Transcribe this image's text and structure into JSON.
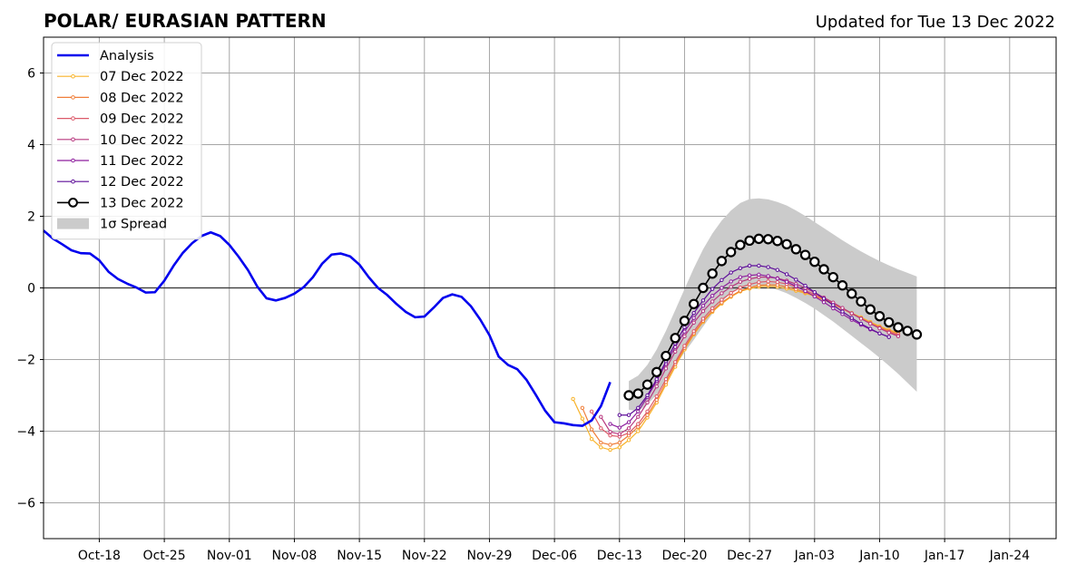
{
  "chart_data": {
    "type": "line",
    "title": "POLAR/ EURASIAN  PATTERN",
    "subtitle": "Updated for Tue 13 Dec 2022",
    "xlabel": "",
    "ylabel": "",
    "ylim": [
      -7,
      7
    ],
    "xlim": [
      "2022-10-12",
      "2023-01-29"
    ],
    "grid": true,
    "legend_position": "top-left",
    "zero_line": true,
    "x_ticks": [
      "2022-10-18",
      "2022-10-25",
      "2022-11-01",
      "2022-11-08",
      "2022-11-15",
      "2022-11-22",
      "2022-11-29",
      "2022-12-06",
      "2022-12-13",
      "2022-12-20",
      "2022-12-27",
      "2023-01-03",
      "2023-01-10",
      "2023-01-17",
      "2023-01-24"
    ],
    "x_tick_labels": [
      "Oct-18",
      "Oct-25",
      "Nov-01",
      "Nov-08",
      "Nov-15",
      "Nov-22",
      "Nov-29",
      "Dec-06",
      "Dec-13",
      "Dec-20",
      "Dec-27",
      "Jan-03",
      "Jan-10",
      "Jan-17",
      "Jan-24"
    ],
    "y_ticks": [
      -6,
      -4,
      -2,
      0,
      2,
      4,
      6
    ],
    "y_tick_labels": [
      "−6",
      "−4",
      "−2",
      "0",
      "2",
      "4",
      "6"
    ],
    "analysis": {
      "name": "Analysis",
      "color": "#0000ee",
      "start": "2022-10-12",
      "values": [
        1.6,
        1.38,
        1.22,
        1.05,
        0.97,
        0.96,
        0.77,
        0.45,
        0.25,
        0.12,
        0.01,
        -0.13,
        -0.12,
        0.2,
        0.62,
        0.98,
        1.25,
        1.45,
        1.55,
        1.45,
        1.2,
        0.87,
        0.5,
        0.04,
        -0.29,
        -0.35,
        -0.28,
        -0.16,
        0.02,
        0.3,
        0.68,
        0.93,
        0.96,
        0.88,
        0.65,
        0.3,
        0.0,
        -0.2,
        -0.45,
        -0.67,
        -0.82,
        -0.8,
        -0.55,
        -0.28,
        -0.18,
        -0.25,
        -0.51,
        -0.88,
        -1.32,
        -1.92,
        -2.15,
        -2.27,
        -2.57,
        -2.99,
        -3.43,
        -3.75,
        -3.78,
        -3.83,
        -3.85,
        -3.7,
        -3.3,
        -2.63
      ]
    },
    "series": [
      {
        "name": "07 Dec 2022",
        "color": "#f8b32a",
        "start": "2022-12-08",
        "values": [
          -3.1,
          -3.65,
          -4.22,
          -4.45,
          -4.52,
          -4.45,
          -4.25,
          -4.0,
          -3.62,
          -3.2,
          -2.7,
          -2.2,
          -1.72,
          -1.3,
          -0.95,
          -0.67,
          -0.44,
          -0.25,
          -0.1,
          -0.02,
          0.03,
          0.05,
          0.03,
          -0.02,
          -0.08,
          -0.15,
          -0.23,
          -0.33,
          -0.45,
          -0.58,
          -0.7,
          -0.82,
          -0.95,
          -1.07,
          -1.17,
          -1.25
        ]
      },
      {
        "name": "08 Dec 2022",
        "color": "#f07f3a",
        "start": "2022-12-09",
        "values": [
          -3.35,
          -3.95,
          -4.32,
          -4.38,
          -4.32,
          -4.12,
          -3.88,
          -3.55,
          -3.13,
          -2.63,
          -2.13,
          -1.68,
          -1.27,
          -0.92,
          -0.64,
          -0.41,
          -0.23,
          -0.08,
          0.01,
          0.07,
          0.09,
          0.08,
          0.03,
          -0.04,
          -0.12,
          -0.22,
          -0.33,
          -0.45,
          -0.58,
          -0.72,
          -0.85,
          -0.98,
          -1.1,
          -1.2,
          -1.28
        ]
      },
      {
        "name": "09 Dec 2022",
        "color": "#dc5a6a",
        "start": "2022-12-10",
        "values": [
          -3.45,
          -3.92,
          -4.12,
          -4.15,
          -4.05,
          -3.8,
          -3.45,
          -3.03,
          -2.55,
          -2.07,
          -1.62,
          -1.21,
          -0.86,
          -0.57,
          -0.33,
          -0.14,
          0.01,
          0.1,
          0.16,
          0.18,
          0.16,
          0.11,
          0.03,
          -0.07,
          -0.18,
          -0.3,
          -0.43,
          -0.57,
          -0.71,
          -0.85,
          -0.99,
          -1.12,
          -1.23,
          -1.32
        ]
      },
      {
        "name": "10 Dec 2022",
        "color": "#b8387f",
        "start": "2022-12-11",
        "values": [
          -3.6,
          -4.02,
          -4.08,
          -3.92,
          -3.6,
          -3.2,
          -2.75,
          -2.25,
          -1.78,
          -1.35,
          -0.97,
          -0.65,
          -0.38,
          -0.15,
          0.03,
          0.17,
          0.25,
          0.3,
          0.3,
          0.27,
          0.2,
          0.11,
          0.0,
          -0.13,
          -0.27,
          -0.41,
          -0.56,
          -0.71,
          -0.86,
          -1.0,
          -1.13,
          -1.25,
          -1.35
        ]
      },
      {
        "name": "11 Dec 2022",
        "color": "#8e1f9e",
        "start": "2022-12-12",
        "values": [
          -3.8,
          -3.9,
          -3.75,
          -3.45,
          -3.05,
          -2.6,
          -2.12,
          -1.65,
          -1.22,
          -0.84,
          -0.5,
          -0.22,
          0.0,
          0.18,
          0.3,
          0.35,
          0.37,
          0.33,
          0.26,
          0.17,
          0.05,
          -0.09,
          -0.24,
          -0.4,
          -0.57,
          -0.73,
          -0.89,
          -1.03,
          -1.16,
          -1.27,
          -1.37
        ]
      },
      {
        "name": "12 Dec 2022",
        "color": "#5d0d99",
        "start": "2022-12-13",
        "values": [
          -3.55,
          -3.55,
          -3.35,
          -3.0,
          -2.55,
          -2.05,
          -1.55,
          -1.1,
          -0.7,
          -0.35,
          -0.03,
          0.22,
          0.43,
          0.55,
          0.62,
          0.62,
          0.58,
          0.5,
          0.38,
          0.23,
          0.06,
          -0.12,
          -0.3,
          -0.48,
          -0.66,
          -0.84,
          -1.0,
          -1.14,
          -1.27,
          -1.37
        ]
      },
      {
        "name": "13 Dec 2022",
        "color": "#000000",
        "start": "2022-12-14",
        "values": [
          -3.0,
          -2.95,
          -2.7,
          -2.35,
          -1.9,
          -1.4,
          -0.92,
          -0.45,
          0.0,
          0.4,
          0.75,
          1.0,
          1.2,
          1.32,
          1.37,
          1.36,
          1.31,
          1.22,
          1.08,
          0.92,
          0.73,
          0.52,
          0.3,
          0.07,
          -0.16,
          -0.38,
          -0.6,
          -0.79,
          -0.96,
          -1.1,
          -1.2,
          -1.3
        ]
      }
    ],
    "spread": {
      "name": "1σ Spread",
      "color": "#cbcbcb",
      "start": "2022-12-14",
      "upper": [
        -2.6,
        -2.45,
        -2.15,
        -1.72,
        -1.2,
        -0.62,
        -0.03,
        0.55,
        1.08,
        1.52,
        1.88,
        2.16,
        2.37,
        2.48,
        2.5,
        2.47,
        2.4,
        2.3,
        2.16,
        2.01,
        1.84,
        1.67,
        1.5,
        1.33,
        1.17,
        1.02,
        0.88,
        0.75,
        0.63,
        0.52,
        0.42,
        0.32
      ],
      "lower": [
        -3.4,
        -3.45,
        -3.25,
        -2.98,
        -2.6,
        -2.18,
        -1.8,
        -1.45,
        -1.08,
        -0.72,
        -0.4,
        -0.14,
        0.0,
        0.05,
        0.05,
        0.02,
        -0.05,
        -0.15,
        -0.28,
        -0.42,
        -0.58,
        -0.76,
        -0.94,
        -1.14,
        -1.34,
        -1.54,
        -1.74,
        -1.95,
        -2.17,
        -2.4,
        -2.65,
        -2.9
      ]
    }
  }
}
